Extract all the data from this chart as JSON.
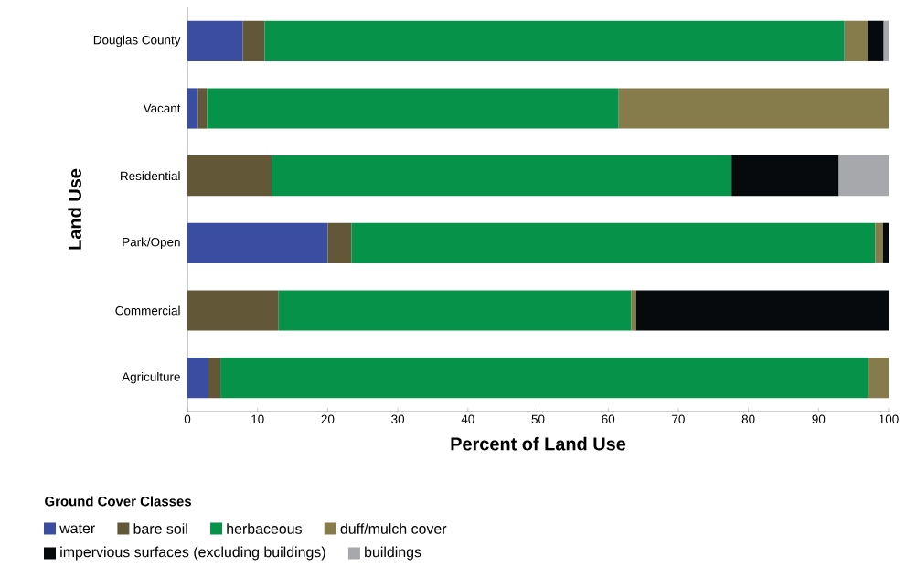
{
  "chart_data": {
    "type": "bar",
    "orientation": "horizontal",
    "stacked": true,
    "categories": [
      "Douglas County",
      "Vacant",
      "Residential",
      "Park/Open",
      "Commercial",
      "Agriculture"
    ],
    "series": [
      {
        "name": "water",
        "color": "#3a4da0",
        "values": [
          7.9,
          1.5,
          null,
          20.0,
          null,
          3.0
        ]
      },
      {
        "name": "bare soil",
        "color": "#625838",
        "values": [
          3.1,
          1.3,
          12.0,
          3.4,
          13.0,
          1.7
        ]
      },
      {
        "name": "herbaceous",
        "color": "#069249",
        "values": [
          82.7,
          58.7,
          65.6,
          74.7,
          50.3,
          92.4
        ]
      },
      {
        "name": "duff/mulch cover",
        "color": "#857b4b",
        "values": [
          3.3,
          38.5,
          null,
          1.1,
          0.7,
          2.9
        ]
      },
      {
        "name": "impervious surfaces (excluding buildings)",
        "color": "#060a0c",
        "values": [
          2.3,
          null,
          15.3,
          0.8,
          36.0,
          null
        ]
      },
      {
        "name": "buildings",
        "color": "#a7a8ab",
        "values": [
          0.7,
          null,
          7.1,
          null,
          null,
          null
        ]
      }
    ],
    "xlabel": "Percent of Land Use",
    "ylabel": "Land Use",
    "legend_title": "Ground Cover Classes",
    "xlim": [
      0,
      100
    ],
    "xticks": [
      0,
      10,
      20,
      30,
      40,
      50,
      60,
      70,
      80,
      90,
      100
    ],
    "legend": "bottom"
  }
}
